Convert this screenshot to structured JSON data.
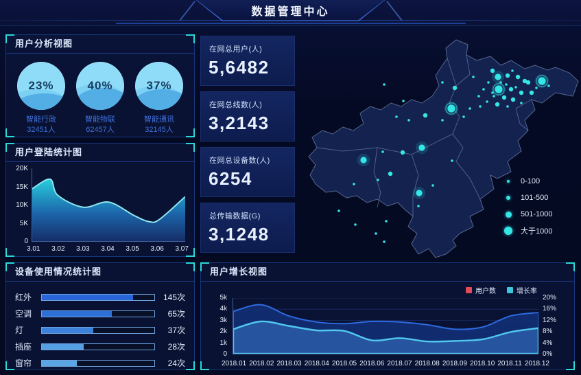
{
  "header": {
    "title": "数据管理中心"
  },
  "panels": {
    "user_analysis": {
      "title": "用户分析视图"
    },
    "login_stats": {
      "title": "用户登陆统计图"
    },
    "device_usage": {
      "title": "设备使用情况统计图"
    },
    "user_growth": {
      "title": "用户增长视图"
    }
  },
  "stats": [
    {
      "label": "在网总用户(人)",
      "value": "5,6482"
    },
    {
      "label": "在网总线数(人)",
      "value": "3,2143"
    },
    {
      "label": "在网总设备数(人)",
      "value": "6254"
    },
    {
      "label": "总传输数据(G)",
      "value": "3,1248"
    }
  ],
  "map": {
    "legend": [
      {
        "label": "0-100",
        "size": 4
      },
      {
        "label": "101-500",
        "size": 6
      },
      {
        "label": "501-1000",
        "size": 9
      },
      {
        "label": "大于1000",
        "size": 12
      }
    ],
    "dot_color": "#35e6e6",
    "dots": [
      [
        288,
        63,
        "m"
      ],
      [
        296,
        72,
        "l"
      ],
      [
        310,
        70,
        "m"
      ],
      [
        317,
        63,
        "s"
      ],
      [
        325,
        72,
        "m"
      ],
      [
        335,
        78,
        "m"
      ],
      [
        308,
        83,
        "s"
      ],
      [
        297,
        90,
        "xl"
      ],
      [
        315,
        90,
        "m"
      ],
      [
        322,
        87,
        "s"
      ],
      [
        330,
        95,
        "m"
      ],
      [
        290,
        100,
        "s"
      ],
      [
        305,
        102,
        "m"
      ],
      [
        318,
        105,
        "m"
      ],
      [
        340,
        80,
        "m"
      ],
      [
        345,
        95,
        "m"
      ],
      [
        360,
        78,
        "xl"
      ],
      [
        370,
        85,
        "s"
      ],
      [
        282,
        80,
        "s"
      ],
      [
        275,
        90,
        "s"
      ],
      [
        268,
        100,
        "s"
      ],
      [
        280,
        108,
        "s"
      ],
      [
        295,
        112,
        "m"
      ],
      [
        310,
        115,
        "s"
      ],
      [
        330,
        110,
        "s"
      ],
      [
        352,
        88,
        "s"
      ],
      [
        300,
        80,
        "s"
      ],
      [
        288,
        95,
        "s"
      ],
      [
        130,
        83,
        "s"
      ],
      [
        158,
        107,
        "s"
      ],
      [
        215,
        80,
        "s"
      ],
      [
        233,
        88,
        "m"
      ],
      [
        260,
        72,
        "s"
      ],
      [
        270,
        115,
        "s"
      ],
      [
        228,
        118,
        "xl"
      ],
      [
        255,
        118,
        "s"
      ],
      [
        190,
        128,
        "m"
      ],
      [
        166,
        135,
        "s"
      ],
      [
        148,
        130,
        "s"
      ],
      [
        215,
        135,
        "s"
      ],
      [
        246,
        130,
        "s"
      ],
      [
        100,
        193,
        "l"
      ],
      [
        185,
        175,
        "l"
      ],
      [
        157,
        182,
        "m"
      ],
      [
        128,
        181,
        "s"
      ],
      [
        229,
        194,
        "s"
      ],
      [
        139,
        213,
        "m"
      ],
      [
        121,
        222,
        "s"
      ],
      [
        86,
        228,
        "s"
      ],
      [
        181,
        241,
        "l"
      ],
      [
        201,
        230,
        "s"
      ],
      [
        180,
        260,
        "s"
      ],
      [
        64,
        267,
        "s"
      ],
      [
        88,
        287,
        "s"
      ],
      [
        133,
        282,
        "s"
      ],
      [
        118,
        300,
        "s"
      ],
      [
        130,
        312,
        "s"
      ]
    ]
  },
  "chart_data": [
    {
      "id": "login_stats",
      "type": "area",
      "title": "用户登陆统计图",
      "x": [
        3.01,
        3.017,
        3.02,
        3.03,
        3.04,
        3.05,
        3.056,
        3.06,
        3.07
      ],
      "values": [
        14400,
        17000,
        12600,
        9300,
        10700,
        7000,
        5300,
        6000,
        12200
      ],
      "xlim": [
        3.01,
        3.07
      ],
      "ylim": [
        0,
        20000
      ],
      "xticks": [
        "3.01",
        "3.02",
        "3.03",
        "3.04",
        "3.05",
        "3.06",
        "3.07"
      ],
      "yticks_desc": [
        "20K",
        "15K",
        "10K",
        "5K",
        "0"
      ],
      "grid": false
    },
    {
      "id": "user_growth",
      "type": "area",
      "title": "用户增长视图",
      "categories": [
        "2018.01",
        "2018.02",
        "2018.03",
        "2018.04",
        "2018.05",
        "2018.06",
        "2018.07",
        "2018.08",
        "2018.09",
        "2018.10",
        "2018.11",
        "2018.12"
      ],
      "series": [
        {
          "name": "用户数",
          "axis": "left",
          "values": [
            3800,
            4400,
            3400,
            2850,
            2700,
            2900,
            2850,
            2600,
            2200,
            2400,
            3400,
            3700
          ],
          "stroke": "#2e6ae0",
          "fill": "rgba(18,48,118,0.88)"
        },
        {
          "name": "增长率",
          "axis": "right",
          "values": [
            8.8,
            11.6,
            10.0,
            8.4,
            8.2,
            4.8,
            5.6,
            4.4,
            4.6,
            5.2,
            7.8,
            9.2
          ],
          "stroke": "#4fc8f0",
          "fill": "rgba(45,95,170,0.8)"
        }
      ],
      "ylim_left": [
        0,
        5000
      ],
      "ylim_right": [
        0,
        20
      ],
      "left_ticks_desc": [
        "5k",
        "4k",
        "3k",
        "2k",
        "1k",
        "0"
      ],
      "right_ticks_desc": [
        "20%",
        "16%",
        "12%",
        "8%",
        "4%",
        "0%"
      ],
      "legend": [
        {
          "label": "用户数",
          "color": "#e14b5a"
        },
        {
          "label": "增长率",
          "color": "#3ec6dc"
        }
      ],
      "grid": true,
      "legend_position": "top-right"
    },
    {
      "id": "device_usage",
      "type": "bar",
      "title": "设备使用情况统计图",
      "categories": [
        "红外",
        "空调",
        "灯",
        "插座",
        "窗帘"
      ],
      "values": [
        145,
        65,
        37,
        28,
        24
      ],
      "unit": "次",
      "bar_pcts": [
        81,
        62,
        46,
        37,
        31
      ],
      "bar_colors": [
        "#2865d8",
        "#2f6fd8",
        "#3c82dc",
        "#55a0e2",
        "#5aa6e4"
      ]
    },
    {
      "id": "user_gauges",
      "type": "pie",
      "title": "用户分析视图",
      "items": [
        {
          "label": "智能行政",
          "percent": 23,
          "count": "32451人",
          "fill": 40
        },
        {
          "label": "智能物联",
          "percent": 40,
          "count": "62457人",
          "fill": 52
        },
        {
          "label": "智能通讯",
          "percent": 37,
          "count": "32145人",
          "fill": 48
        }
      ]
    }
  ]
}
